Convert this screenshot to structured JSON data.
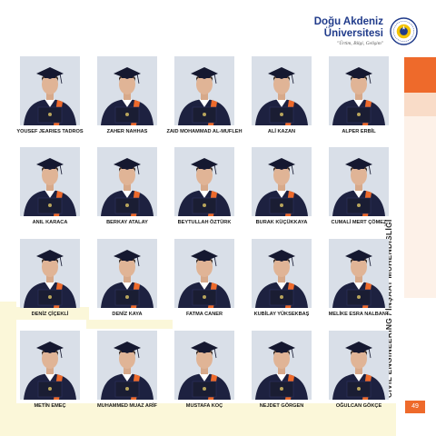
{
  "university": {
    "name_line1": "Doğu Akdeniz",
    "name_line2": "Üniversitesi",
    "motto": "\"Ürtim, Bilgi, Gelişim\""
  },
  "department": "CIVIL ENGINEERING / İNŞAAT MÜHENDİSLİĞİ",
  "page_number": "49",
  "colors": {
    "accent_orange": "#ee6a2b",
    "brand_blue": "#1f3a8a",
    "gown_navy": "#1d2140"
  },
  "graduates": [
    [
      "YOUSEF JEARIES TADROS",
      "ZAHER NAHHAS",
      "ZAID MOHAMMAD AL-MUFLEH",
      "ALİ KAZAN",
      "ALPER ERBİL"
    ],
    [
      "ANIL KARACA",
      "BERKAY ATALAY",
      "BEYTULLAH ÖZTÜRK",
      "BURAK KÜÇÜKKAYA",
      "CUMALİ MERT ÇÖMEZ"
    ],
    [
      "DENİZ ÇİÇEKLİ",
      "DENİZ KAYA",
      "FATMA CANER",
      "KUBİLAY YÜKSEKBAŞ",
      "MELİKE ESRA NALBANT"
    ],
    [
      "METİN EMEÇ",
      "MUHAMMED MUAZ ARİF",
      "MUSTAFA KOÇ",
      "NEJDET GÖRGEN",
      "OĞULCAN GÖKÇE"
    ]
  ]
}
